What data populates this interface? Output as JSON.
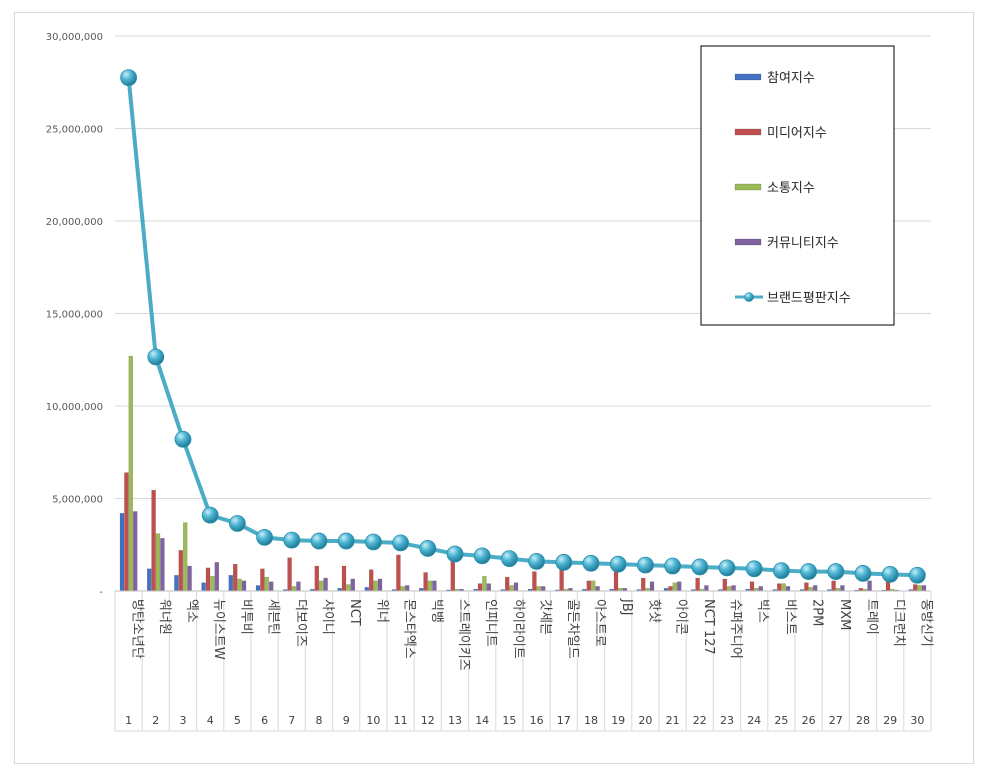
{
  "chart_data": {
    "type": "bar",
    "title": "",
    "xlabel": "",
    "ylabel": "",
    "ylim": [
      0,
      30000000
    ],
    "yticks": [
      {
        "value": 0,
        "label": "-"
      },
      {
        "value": 5000000,
        "label": "5,000,000"
      },
      {
        "value": 10000000,
        "label": "10,000,000"
      },
      {
        "value": 15000000,
        "label": "15,000,000"
      },
      {
        "value": 20000000,
        "label": "20,000,000"
      },
      {
        "value": 25000000,
        "label": "25,000,000"
      },
      {
        "value": 30000000,
        "label": "30,000,000"
      }
    ],
    "grid": true,
    "legend_position": "top-right",
    "categories": [
      "방탄소년단",
      "워너원",
      "엑소",
      "뉴이스트W",
      "비투비",
      "세븐틴",
      "더보이즈",
      "샤이니",
      "NCT",
      "위너",
      "몬스타엑스",
      "빅뱅",
      "스트레이키즈",
      "인피니트",
      "하이라이트",
      "갓세븐",
      "골든차일드",
      "아스트로",
      "JBJ",
      "핫샷",
      "아이콘",
      "NCT 127",
      "슈퍼주니어",
      "빅스",
      "비스트",
      "2PM",
      "MXM",
      "트레이",
      "디크런치",
      "동방신기"
    ],
    "ranks": [
      "1",
      "2",
      "3",
      "4",
      "5",
      "6",
      "7",
      "8",
      "9",
      "10",
      "11",
      "12",
      "13",
      "14",
      "15",
      "16",
      "17",
      "18",
      "19",
      "20",
      "21",
      "22",
      "23",
      "24",
      "25",
      "26",
      "27",
      "28",
      "29",
      "30"
    ],
    "series": [
      {
        "name": "참여지수",
        "kind": "bar",
        "color": "#4472c4",
        "values": [
          4200000,
          1200000,
          850000,
          450000,
          850000,
          300000,
          80000,
          100000,
          150000,
          200000,
          80000,
          150000,
          60000,
          100000,
          80000,
          100000,
          60000,
          100000,
          100000,
          80000,
          150000,
          80000,
          80000,
          100000,
          80000,
          80000,
          80000,
          50000,
          50000,
          80000
        ]
      },
      {
        "name": "미디어지수",
        "kind": "bar",
        "color": "#c0504d",
        "values": [
          6400000,
          5450000,
          2200000,
          1250000,
          1450000,
          1200000,
          1800000,
          1350000,
          1350000,
          1150000,
          1950000,
          1000000,
          1600000,
          400000,
          750000,
          1050000,
          1150000,
          550000,
          1050000,
          700000,
          250000,
          700000,
          650000,
          500000,
          400000,
          450000,
          550000,
          150000,
          550000,
          350000
        ]
      },
      {
        "name": "소통지수",
        "kind": "bar",
        "color": "#9bbb59",
        "values": [
          12700000,
          3100000,
          3700000,
          800000,
          650000,
          750000,
          250000,
          550000,
          350000,
          550000,
          250000,
          550000,
          100000,
          800000,
          300000,
          250000,
          100000,
          550000,
          150000,
          150000,
          450000,
          100000,
          250000,
          150000,
          400000,
          200000,
          150000,
          100000,
          100000,
          300000
        ]
      },
      {
        "name": "커뮤니티지수",
        "kind": "bar",
        "color": "#8064a2",
        "values": [
          4300000,
          2850000,
          1350000,
          1550000,
          550000,
          500000,
          500000,
          700000,
          650000,
          650000,
          300000,
          550000,
          100000,
          400000,
          450000,
          250000,
          150000,
          250000,
          150000,
          500000,
          500000,
          300000,
          300000,
          250000,
          250000,
          300000,
          300000,
          550000,
          50000,
          300000
        ]
      },
      {
        "name": "브랜드평판지수",
        "kind": "line",
        "color": "#4bacc6",
        "values": [
          27750000,
          12650000,
          8200000,
          4100000,
          3650000,
          2900000,
          2750000,
          2700000,
          2700000,
          2650000,
          2600000,
          2300000,
          2000000,
          1900000,
          1750000,
          1600000,
          1550000,
          1500000,
          1450000,
          1400000,
          1350000,
          1300000,
          1250000,
          1200000,
          1100000,
          1050000,
          1050000,
          950000,
          900000,
          850000
        ]
      }
    ]
  }
}
